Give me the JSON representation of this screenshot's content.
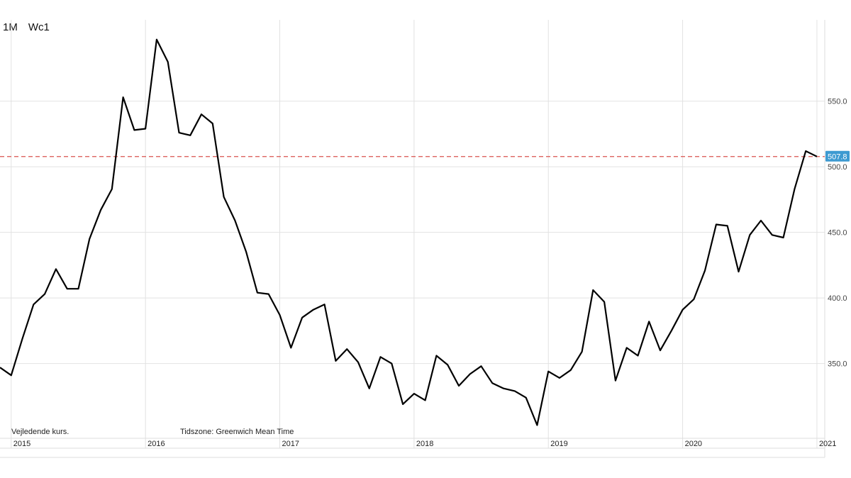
{
  "toolbar": {
    "interval": "1M",
    "symbol": "Wc1"
  },
  "footer": {
    "note": "Vejledende kurs.",
    "timezone": "Tidszone: Greenwich Mean Time"
  },
  "chart_data": {
    "type": "line",
    "title": "",
    "xlabel": "",
    "ylabel": "",
    "x_start": "2014-12",
    "ylim": [
      293,
      612
    ],
    "yticks": [
      350,
      400,
      450,
      500,
      550
    ],
    "ytick_labels": [
      "350.0",
      "400.0",
      "450.0",
      "500.0",
      "550.0"
    ],
    "xtick_labels": [
      "2015",
      "2016",
      "2017",
      "2018",
      "2019",
      "2020",
      "2021"
    ],
    "xtick_months": [
      "2015-01",
      "2016-01",
      "2017-01",
      "2018-01",
      "2019-01",
      "2020-01",
      "2021-01"
    ],
    "last_price": 507.8,
    "last_price_label": "507.8",
    "line_color": "#000000",
    "last_price_line_color": "#d9534f",
    "last_price_badge_color": "#3d9ad1",
    "grid": true,
    "series": [
      {
        "values": [
          347,
          341,
          369,
          395,
          403,
          422,
          407,
          407,
          445,
          467,
          483,
          553,
          528,
          529,
          597,
          580,
          526,
          524,
          540,
          533,
          477,
          459,
          435,
          404,
          403,
          387,
          362,
          385,
          391,
          395,
          352,
          361,
          351,
          331,
          355,
          350,
          319,
          327,
          322,
          356,
          349,
          333,
          342,
          348,
          335,
          331,
          329,
          324,
          303,
          344,
          339,
          345,
          359,
          406,
          397,
          337,
          362,
          356,
          382,
          360,
          375,
          391,
          399,
          421,
          456,
          455,
          420,
          448,
          459,
          448,
          446,
          483,
          512,
          507.8
        ]
      }
    ]
  }
}
